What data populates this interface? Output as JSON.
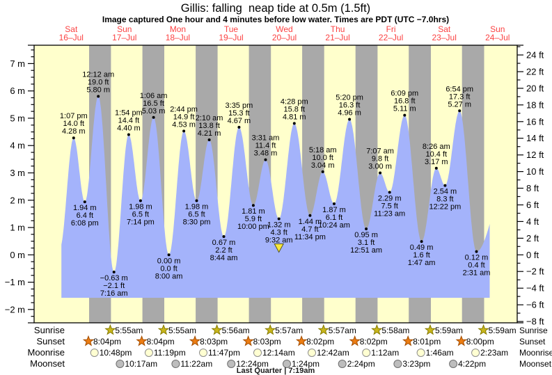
{
  "header": {
    "title": "Gillis: falling  neap tide at 0.5m (1.5ft)",
    "subtitle": "Image captured One hour and 4 minutes before low water. Times are PDT (UTC −7.0hrs)"
  },
  "colors": {
    "day_band": "#ffffcc",
    "night_band": "#a9a9a9",
    "tide_fill": "#a4b3fb",
    "day_label": "#fb4242",
    "frame": "#000000",
    "current_marker_fill": "#f7e63c",
    "current_marker_stroke": "#55551e"
  },
  "days": [
    {
      "name": "Sat",
      "date": "16–Jul",
      "num": 16
    },
    {
      "name": "Sun",
      "date": "17–Jul",
      "num": 17
    },
    {
      "name": "Mon",
      "date": "18–Jul",
      "num": 18
    },
    {
      "name": "Tue",
      "date": "19–Jul",
      "num": 19
    },
    {
      "name": "Wed",
      "date": "20–Jul",
      "num": 20
    },
    {
      "name": "Thu",
      "date": "21–Jul",
      "num": 21
    },
    {
      "name": "Fri",
      "date": "22–Jul",
      "num": 22
    },
    {
      "name": "Sat",
      "date": "23–Jul",
      "num": 23
    },
    {
      "name": "Sun",
      "date": "24–Jul",
      "num": 24
    }
  ],
  "chart_data": {
    "type": "area",
    "title": "Gillis tide heights",
    "y_axis_left": {
      "unit": "m",
      "ticks": [
        7,
        6,
        5,
        4,
        3,
        2,
        1,
        0,
        -1,
        -2
      ],
      "minor_step": 0.25
    },
    "y_axis_right": {
      "unit": "ft",
      "ticks": [
        24,
        22,
        20,
        18,
        16,
        14,
        12,
        10,
        8,
        6,
        4,
        2,
        0,
        -2,
        -4,
        -6,
        -8
      ],
      "minor_step": 1
    },
    "tide_events": [
      {
        "date": 16,
        "time": "1:07 pm",
        "height_ft": 14.0,
        "height_m": 4.28,
        "type": "high"
      },
      {
        "date": 16,
        "time": "6:08 pm",
        "height_ft": 6.4,
        "height_m": 1.94,
        "type": "low"
      },
      {
        "date": 17,
        "time": "12:12 am",
        "height_ft": 19.0,
        "height_m": 5.8,
        "type": "high"
      },
      {
        "date": 17,
        "time": "7:16 am",
        "height_ft": -2.1,
        "height_m": -0.63,
        "type": "low"
      },
      {
        "date": 17,
        "time": "1:54 pm",
        "height_ft": 14.4,
        "height_m": 4.4,
        "type": "high"
      },
      {
        "date": 17,
        "time": "7:14 pm",
        "height_ft": 6.5,
        "height_m": 1.98,
        "type": "low"
      },
      {
        "date": 18,
        "time": "1:06 am",
        "height_ft": 16.5,
        "height_m": 5.03,
        "type": "high"
      },
      {
        "date": 18,
        "time": "8:00 am",
        "height_ft": 0.0,
        "height_m": 0.0,
        "type": "low"
      },
      {
        "date": 18,
        "time": "2:44 pm",
        "height_ft": 14.9,
        "height_m": 4.53,
        "type": "high"
      },
      {
        "date": 18,
        "time": "8:30 pm",
        "height_ft": 6.5,
        "height_m": 1.98,
        "type": "low"
      },
      {
        "date": 19,
        "time": "2:10 am",
        "height_ft": 13.8,
        "height_m": 4.21,
        "type": "high"
      },
      {
        "date": 19,
        "time": "8:44 am",
        "height_ft": 2.2,
        "height_m": 0.67,
        "type": "low"
      },
      {
        "date": 19,
        "time": "3:35 pm",
        "height_ft": 15.3,
        "height_m": 4.67,
        "type": "high"
      },
      {
        "date": 19,
        "time": "10:00 pm",
        "height_ft": 5.9,
        "height_m": 1.81,
        "type": "low"
      },
      {
        "date": 20,
        "time": "3:31 am",
        "height_ft": 11.4,
        "height_m": 3.48,
        "type": "high"
      },
      {
        "date": 20,
        "time": "9:32 am",
        "height_ft": 4.3,
        "height_m": 1.32,
        "type": "low",
        "current": true
      },
      {
        "date": 20,
        "time": "4:28 pm",
        "height_ft": 15.8,
        "height_m": 4.81,
        "type": "high"
      },
      {
        "date": 20,
        "time": "11:34 pm",
        "height_ft": 4.7,
        "height_m": 1.44,
        "type": "low"
      },
      {
        "date": 21,
        "time": "5:18 am",
        "height_ft": 10.0,
        "height_m": 3.04,
        "type": "high"
      },
      {
        "date": 21,
        "time": "10:24 am",
        "height_ft": 6.1,
        "height_m": 1.87,
        "type": "low"
      },
      {
        "date": 21,
        "time": "5:20 pm",
        "height_ft": 16.3,
        "height_m": 4.96,
        "type": "high"
      },
      {
        "date": 22,
        "time": "12:51 am",
        "height_ft": 3.1,
        "height_m": 0.95,
        "type": "low"
      },
      {
        "date": 22,
        "time": "7:07 am",
        "height_ft": 9.8,
        "height_m": 3.0,
        "type": "high"
      },
      {
        "date": 22,
        "time": "11:23 am",
        "height_ft": 7.5,
        "height_m": 2.29,
        "type": "low"
      },
      {
        "date": 22,
        "time": "6:09 pm",
        "height_ft": 16.8,
        "height_m": 5.11,
        "type": "high"
      },
      {
        "date": 23,
        "time": "1:47 am",
        "height_ft": 1.6,
        "height_m": 0.49,
        "type": "low"
      },
      {
        "date": 23,
        "time": "8:26 am",
        "height_ft": 10.4,
        "height_m": 3.17,
        "type": "high"
      },
      {
        "date": 23,
        "time": "12:22 pm",
        "height_ft": 8.3,
        "height_m": 2.54,
        "type": "low"
      },
      {
        "date": 23,
        "time": "6:54 pm",
        "height_ft": 17.3,
        "height_m": 5.27,
        "type": "high"
      },
      {
        "date": 24,
        "time": "2:31 am",
        "height_ft": 0.4,
        "height_m": 0.12,
        "type": "low"
      }
    ]
  },
  "almanac": {
    "rows": [
      {
        "id": "sunrise",
        "label": "Sunrise",
        "icon": "sunrise-star",
        "fill": "#c9b71c",
        "stroke": "#867a00",
        "entries": [
          {
            "date": 17,
            "time": "5:55am"
          },
          {
            "date": 18,
            "time": "5:55am"
          },
          {
            "date": 19,
            "time": "5:56am"
          },
          {
            "date": 20,
            "time": "5:57am"
          },
          {
            "date": 21,
            "time": "5:57am"
          },
          {
            "date": 22,
            "time": "5:58am"
          },
          {
            "date": 23,
            "time": "5:59am"
          },
          {
            "date": 24,
            "time": "5:59am"
          }
        ]
      },
      {
        "id": "sunset",
        "label": "Sunset",
        "icon": "sunset-star",
        "fill": "#ec7d13",
        "stroke": "#a34d00",
        "entries": [
          {
            "date": 16,
            "time": "8:04pm"
          },
          {
            "date": 17,
            "time": "8:04pm"
          },
          {
            "date": 18,
            "time": "8:03pm"
          },
          {
            "date": 19,
            "time": "8:03pm"
          },
          {
            "date": 20,
            "time": "8:02pm"
          },
          {
            "date": 21,
            "time": "8:02pm"
          },
          {
            "date": 22,
            "time": "8:01pm"
          },
          {
            "date": 23,
            "time": "8:00pm"
          }
        ]
      },
      {
        "id": "moonrise",
        "label": "Moonrise",
        "icon": "moonrise-circle",
        "fill": "#ffffd2",
        "stroke": "#8c8c8c",
        "entries": [
          {
            "date": 16,
            "time": "10:48pm"
          },
          {
            "date": 17,
            "time": "11:19pm"
          },
          {
            "date": 18,
            "time": "11:47pm"
          },
          {
            "date": 20,
            "time": "12:14am"
          },
          {
            "date": 21,
            "time": "12:42am"
          },
          {
            "date": 22,
            "time": "1:12am"
          },
          {
            "date": 23,
            "time": "1:46am"
          },
          {
            "date": 24,
            "time": "2:23am"
          }
        ]
      },
      {
        "id": "moonset",
        "label": "Moonset",
        "icon": "moonset-circle",
        "fill": "#bdbdbd",
        "stroke": "#6e6e6e",
        "entries": [
          {
            "date": 17,
            "time": "10:17am"
          },
          {
            "date": 18,
            "time": "11:22am"
          },
          {
            "date": 19,
            "time": "12:24pm"
          },
          {
            "date": 20,
            "time": "1:24pm"
          },
          {
            "date": 21,
            "time": "2:24pm"
          },
          {
            "date": 22,
            "time": "3:23pm"
          },
          {
            "date": 23,
            "time": "4:22pm"
          }
        ]
      }
    ],
    "phase": "Last Quarter | 7:19am"
  }
}
